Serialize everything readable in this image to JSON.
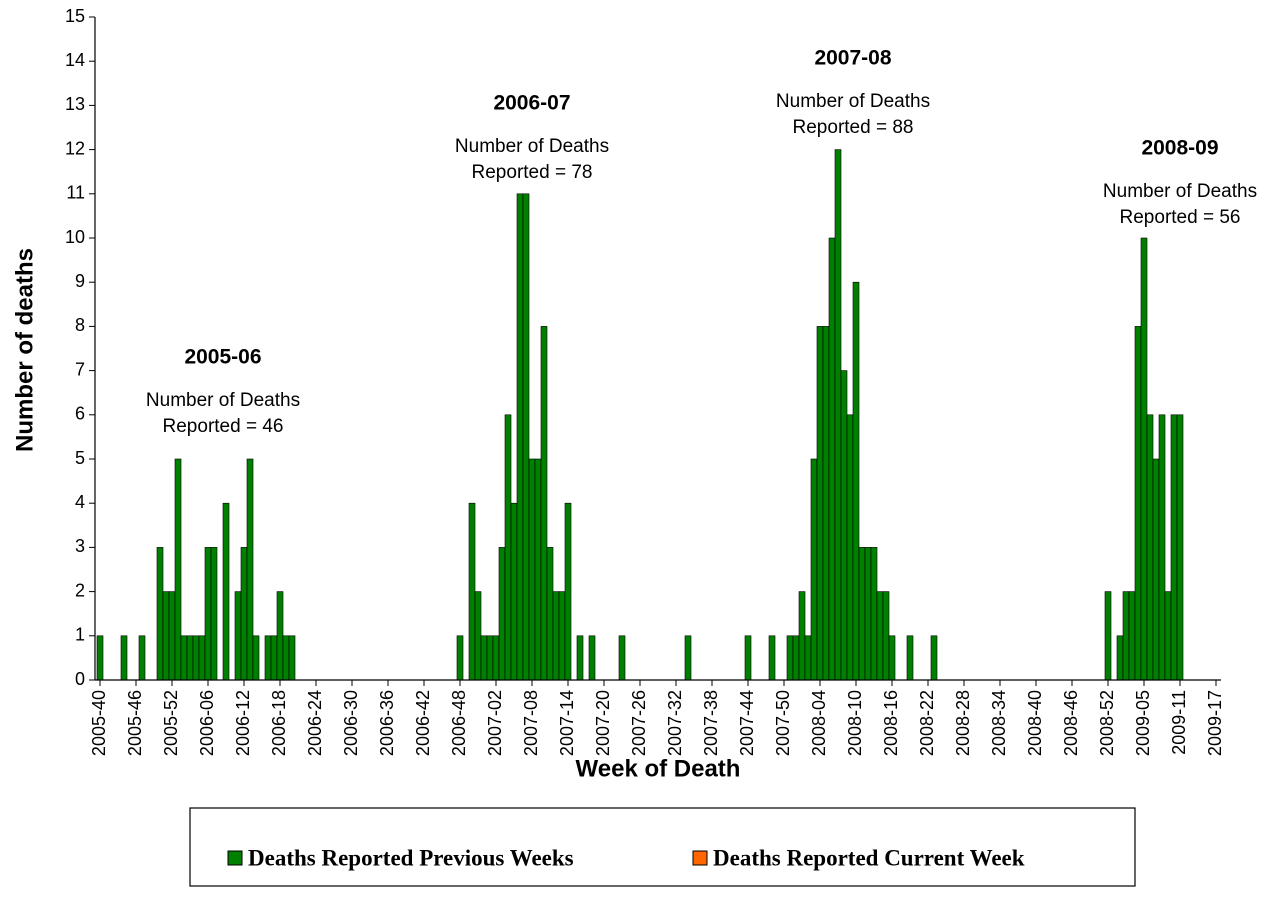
{
  "chart_data": {
    "type": "bar",
    "x_label": "Week of Death",
    "y_label": "Number of deaths",
    "categories": [
      "2005-40",
      null,
      null,
      null,
      null,
      null,
      "2005-46",
      null,
      null,
      null,
      null,
      null,
      "2005-52",
      null,
      null,
      null,
      null,
      null,
      "2006-06",
      null,
      null,
      null,
      null,
      null,
      "2006-12",
      null,
      null,
      null,
      null,
      null,
      "2006-18",
      null,
      null,
      null,
      null,
      null,
      "2006-24",
      null,
      null,
      null,
      null,
      null,
      "2006-30",
      null,
      null,
      null,
      null,
      null,
      "2006-36",
      null,
      null,
      null,
      null,
      null,
      "2006-42",
      null,
      null,
      null,
      null,
      null,
      "2006-48",
      null,
      null,
      null,
      null,
      null,
      "2007-02",
      null,
      null,
      null,
      null,
      null,
      "2007-08",
      null,
      null,
      null,
      null,
      null,
      "2007-14",
      null,
      null,
      null,
      null,
      null,
      "2007-20",
      null,
      null,
      null,
      null,
      null,
      "2007-26",
      null,
      null,
      null,
      null,
      null,
      "2007-32",
      null,
      null,
      null,
      null,
      null,
      "2007-38",
      null,
      null,
      null,
      null,
      null,
      "2007-44",
      null,
      null,
      null,
      null,
      null,
      "2007-50",
      null,
      null,
      null,
      null,
      null,
      "2008-04",
      null,
      null,
      null,
      null,
      null,
      "2008-10",
      null,
      null,
      null,
      null,
      null,
      "2008-16",
      null,
      null,
      null,
      null,
      null,
      "2008-22",
      null,
      null,
      null,
      null,
      null,
      "2008-28",
      null,
      null,
      null,
      null,
      null,
      "2008-34",
      null,
      null,
      null,
      null,
      null,
      "2008-40",
      null,
      null,
      null,
      null,
      null,
      "2008-46",
      null,
      null,
      null,
      null,
      null,
      "2008-52",
      null,
      null,
      null,
      null,
      null,
      "2009-05",
      null,
      null,
      null,
      null,
      null,
      "2009-11",
      null,
      null,
      null,
      null,
      null,
      "2009-17"
    ],
    "series": [
      {
        "name": "Deaths Reported Previous Weeks",
        "color": "#008000",
        "values": [
          1,
          0,
          0,
          0,
          1,
          0,
          0,
          1,
          0,
          0,
          3,
          2,
          2,
          5,
          1,
          1,
          1,
          1,
          3,
          3,
          0,
          4,
          0,
          2,
          3,
          5,
          1,
          0,
          1,
          1,
          2,
          1,
          1,
          0,
          0,
          0,
          0,
          0,
          0,
          0,
          0,
          0,
          0,
          0,
          0,
          0,
          0,
          0,
          0,
          0,
          0,
          0,
          0,
          0,
          0,
          0,
          0,
          0,
          0,
          0,
          1,
          0,
          4,
          2,
          1,
          1,
          1,
          3,
          6,
          4,
          11,
          11,
          5,
          5,
          8,
          3,
          2,
          2,
          4,
          0,
          1,
          0,
          1,
          0,
          0,
          0,
          0,
          1,
          0,
          0,
          0,
          0,
          0,
          0,
          0,
          0,
          0,
          0,
          1,
          0,
          0,
          0,
          0,
          0,
          0,
          0,
          0,
          0,
          1,
          0,
          0,
          0,
          1,
          0,
          0,
          1,
          1,
          2,
          1,
          5,
          8,
          8,
          10,
          12,
          7,
          6,
          9,
          3,
          3,
          3,
          2,
          2,
          1,
          0,
          0,
          1,
          0,
          0,
          0,
          1,
          0,
          0,
          0,
          0,
          0,
          0,
          0,
          0,
          0,
          0,
          0,
          0,
          0,
          0,
          0,
          0,
          0,
          0,
          0,
          0,
          0,
          0,
          0,
          0,
          0,
          0,
          0,
          0,
          2,
          0,
          1,
          2,
          2,
          8,
          10,
          6,
          5,
          6,
          2,
          6,
          6,
          0,
          0,
          0,
          0,
          0,
          0
        ]
      },
      {
        "name": "Deaths Reported Current Week",
        "color": "#ff6600",
        "values": [
          0,
          0,
          0,
          0,
          0,
          0,
          0,
          0,
          0,
          0,
          0,
          0,
          0,
          0,
          0,
          0,
          0,
          0,
          0,
          0,
          0,
          0,
          0,
          0,
          0,
          0,
          0,
          0,
          0,
          0,
          0,
          0,
          0,
          0,
          0,
          0,
          0,
          0,
          0,
          0,
          0,
          0,
          0,
          0,
          0,
          0,
          0,
          0,
          0,
          0,
          0,
          0,
          0,
          0,
          0,
          0,
          0,
          0,
          0,
          0,
          0,
          0,
          0,
          0,
          0,
          0,
          0,
          0,
          0,
          0,
          0,
          0,
          0,
          0,
          0,
          0,
          0,
          0,
          0,
          0,
          0,
          0,
          0,
          0,
          0,
          0,
          0,
          0,
          0,
          0,
          0,
          0,
          0,
          0,
          0,
          0,
          0,
          0,
          0,
          0,
          0,
          0,
          0,
          0,
          0,
          0,
          0,
          0,
          0,
          0,
          0,
          0,
          0,
          0,
          0,
          0,
          0,
          0,
          0,
          0,
          0,
          0,
          0,
          0,
          0,
          0,
          0,
          0,
          0,
          0,
          0,
          0,
          0,
          0,
          0,
          0,
          0,
          0,
          0,
          0,
          0,
          0,
          0,
          0,
          0,
          0,
          0,
          0,
          0,
          0,
          0,
          0,
          0,
          0,
          0,
          0,
          0,
          0,
          0,
          0,
          0,
          0,
          0,
          0,
          0,
          0,
          0,
          0,
          0,
          0,
          0,
          0,
          0,
          0,
          0,
          0,
          0,
          0,
          0,
          0,
          0,
          0,
          0,
          0,
          0,
          0,
          0
        ]
      }
    ],
    "stacked": true,
    "ylim": [
      0,
      15
    ],
    "yticks": [
      0,
      1,
      2,
      3,
      4,
      5,
      6,
      7,
      8,
      9,
      10,
      11,
      12,
      13,
      14,
      15
    ],
    "grid": false,
    "legend": "bottom",
    "annotations": [
      {
        "title": "2005-06",
        "text": [
          "Number of Deaths",
          "Reported = 46"
        ]
      },
      {
        "title": "2006-07",
        "text": [
          "Number of Deaths",
          "Reported = 78"
        ]
      },
      {
        "title": "2007-08",
        "text": [
          "Number of Deaths",
          "Reported = 88"
        ]
      },
      {
        "title": "2008-09",
        "text": [
          "Number of Deaths",
          "Reported = 56"
        ]
      }
    ]
  }
}
